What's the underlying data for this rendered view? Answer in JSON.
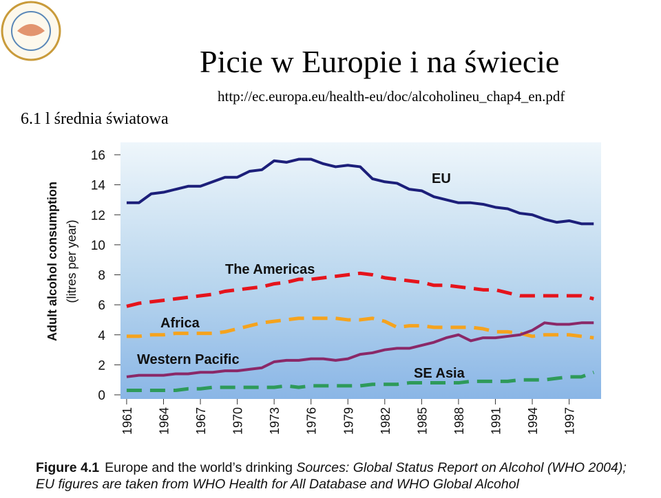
{
  "title": "Picie w Europie i na świecie",
  "subtitle": "http://ec.europa.eu/health-eu/doc/alcoholineu_chap4_en.pdf",
  "annotation": "6.1 l średnia światowa",
  "figure_label": "Figure 4.1",
  "caption": "Europe and the world’s drinking",
  "sources": "Sources: Global Status Report on Alcohol (WHO 2004); EU figures are taken from WHO Health for All Database and WHO Global Alcohol",
  "chart_data": {
    "type": "line",
    "ylabel": [
      "Adult alcohol consumption",
      "(litres per year)"
    ],
    "x": [
      1961,
      1962,
      1963,
      1964,
      1965,
      1966,
      1967,
      1968,
      1969,
      1970,
      1971,
      1972,
      1973,
      1974,
      1975,
      1976,
      1977,
      1978,
      1979,
      1980,
      1981,
      1982,
      1983,
      1984,
      1985,
      1986,
      1987,
      1988,
      1989,
      1990,
      1991,
      1992,
      1993,
      1994,
      1995,
      1996,
      1997,
      1998,
      1999
    ],
    "xlim": [
      1960.5,
      1999.6
    ],
    "xticks": [
      1961,
      1964,
      1967,
      1970,
      1973,
      1976,
      1979,
      1982,
      1985,
      1988,
      1991,
      1994,
      1997
    ],
    "ylim": [
      0,
      16
    ],
    "yticks": [
      0,
      2,
      4,
      6,
      8,
      10,
      12,
      14,
      16
    ],
    "grid": false,
    "series": [
      {
        "name": "EU",
        "color": "#1c1f7a",
        "style": "solid",
        "values": [
          12.8,
          12.8,
          13.4,
          13.5,
          13.7,
          13.9,
          13.9,
          14.2,
          14.5,
          14.5,
          14.9,
          15.0,
          15.6,
          15.5,
          15.7,
          15.7,
          15.4,
          15.2,
          15.3,
          15.2,
          14.4,
          14.2,
          14.1,
          13.7,
          13.6,
          13.2,
          13.0,
          12.8,
          12.8,
          12.7,
          12.5,
          12.4,
          12.1,
          12.0,
          11.7,
          11.5,
          11.6,
          11.4,
          11.4
        ]
      },
      {
        "name": "The Americas",
        "color": "#e5141c",
        "style": "dashed",
        "values": [
          5.9,
          6.1,
          6.2,
          6.3,
          6.4,
          6.5,
          6.6,
          6.7,
          6.9,
          7.0,
          7.1,
          7.2,
          7.4,
          7.5,
          7.7,
          7.7,
          7.8,
          7.9,
          8.0,
          8.1,
          8.0,
          7.8,
          7.7,
          7.6,
          7.5,
          7.3,
          7.3,
          7.2,
          7.1,
          7.0,
          7.0,
          6.8,
          6.6,
          6.6,
          6.6,
          6.6,
          6.6,
          6.6,
          6.4
        ]
      },
      {
        "name": "Africa",
        "color": "#f5a31e",
        "style": "dashed",
        "values": [
          3.9,
          3.9,
          4.0,
          4.0,
          4.1,
          4.1,
          4.1,
          4.1,
          4.2,
          4.4,
          4.6,
          4.8,
          4.9,
          5.0,
          5.1,
          5.1,
          5.1,
          5.1,
          5.0,
          5.0,
          5.1,
          4.9,
          4.5,
          4.6,
          4.6,
          4.5,
          4.5,
          4.5,
          4.5,
          4.4,
          4.2,
          4.2,
          4.1,
          3.9,
          4.0,
          4.0,
          4.0,
          3.9,
          3.8
        ]
      },
      {
        "name": "Western Pacific",
        "color": "#8a2868",
        "style": "solid",
        "values": [
          1.2,
          1.3,
          1.3,
          1.3,
          1.4,
          1.4,
          1.5,
          1.5,
          1.6,
          1.6,
          1.7,
          1.8,
          2.2,
          2.3,
          2.3,
          2.4,
          2.4,
          2.3,
          2.4,
          2.7,
          2.8,
          3.0,
          3.1,
          3.1,
          3.3,
          3.5,
          3.8,
          4.0,
          3.6,
          3.8,
          3.8,
          3.9,
          4.0,
          4.3,
          4.8,
          4.7,
          4.7,
          4.8,
          4.8
        ]
      },
      {
        "name": "SE Asia",
        "color": "#2e9a5a",
        "style": "dashed",
        "values": [
          0.3,
          0.3,
          0.3,
          0.3,
          0.3,
          0.4,
          0.4,
          0.5,
          0.5,
          0.5,
          0.5,
          0.5,
          0.5,
          0.6,
          0.5,
          0.6,
          0.6,
          0.6,
          0.6,
          0.6,
          0.7,
          0.7,
          0.7,
          0.8,
          0.8,
          0.8,
          0.8,
          0.8,
          0.9,
          0.9,
          0.9,
          0.9,
          1.0,
          1.0,
          1.0,
          1.1,
          1.2,
          1.2,
          1.5
        ]
      }
    ]
  }
}
